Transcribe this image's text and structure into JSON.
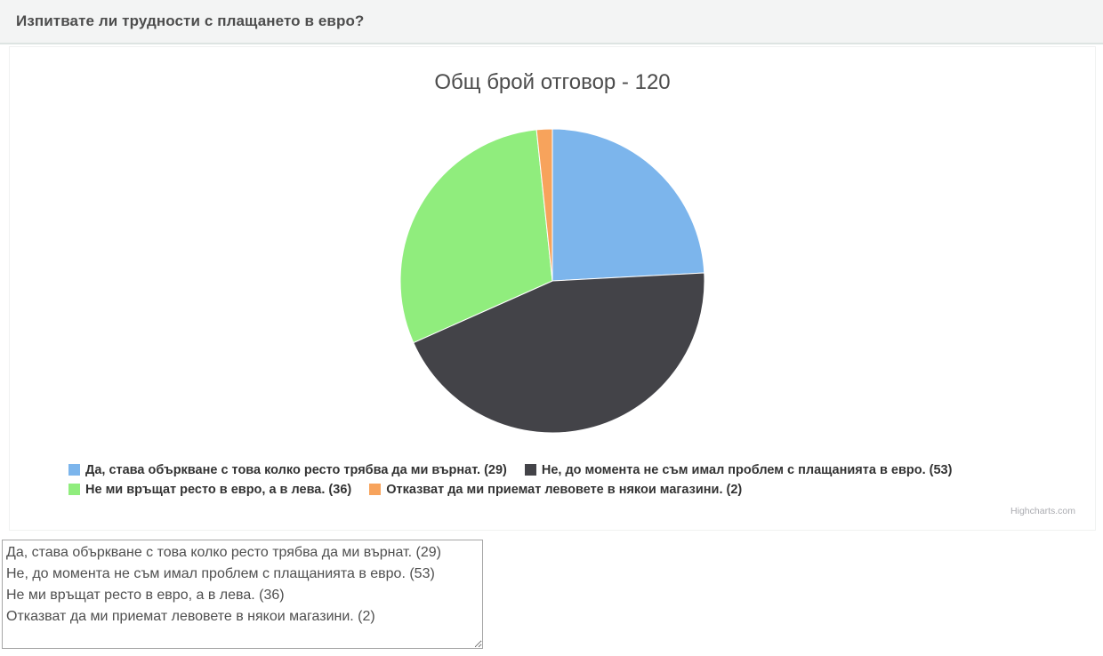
{
  "header": {
    "title": "Изпитвате ли трудности с плащането в евро?"
  },
  "chart": {
    "title": "Общ брой отговор - 120",
    "credit": "Highcharts.com"
  },
  "chart_data": {
    "type": "pie",
    "title": "Общ брой отговор - 120",
    "total": 120,
    "start_angle_deg": 0,
    "direction": "clockwise",
    "legend_position": "bottom",
    "slices": [
      {
        "label": "Да, става объркване с това колко ресто трябва да ми върнат.",
        "value": 29,
        "percent": 24.17,
        "color": "#7cb5ec",
        "legend": "Да, става объркване с това колко ресто трябва да ми върнат. (29)"
      },
      {
        "label": "Не, до момента не съм имал проблем с плащанията в евро.",
        "value": 53,
        "percent": 44.17,
        "color": "#434348",
        "legend": "Не, до момента не съм имал проблем с плащанията в евро. (53)"
      },
      {
        "label": "Не ми връщат ресто в евро, а в лева.",
        "value": 36,
        "percent": 30.0,
        "color": "#90ed7d",
        "legend": "Не ми връщат ресто в евро, а в лева. (36)"
      },
      {
        "label": "Отказват да ми приемат левовете в някои магазини.",
        "value": 2,
        "percent": 1.67,
        "color": "#f7a35c",
        "legend": "Отказват да ми приемат левовете в някои магазини. (2)"
      }
    ]
  },
  "textarea": {
    "value": "Да, става объркване с това колко ресто трябва да ми върнат. (29)\nНе, до момента не съм имал проблем с плащанията в евро. (53)\nНе ми връщат ресто в евро, а в лева. (36)\nОтказват да ми приемат левовете в някои магазини. (2)"
  }
}
